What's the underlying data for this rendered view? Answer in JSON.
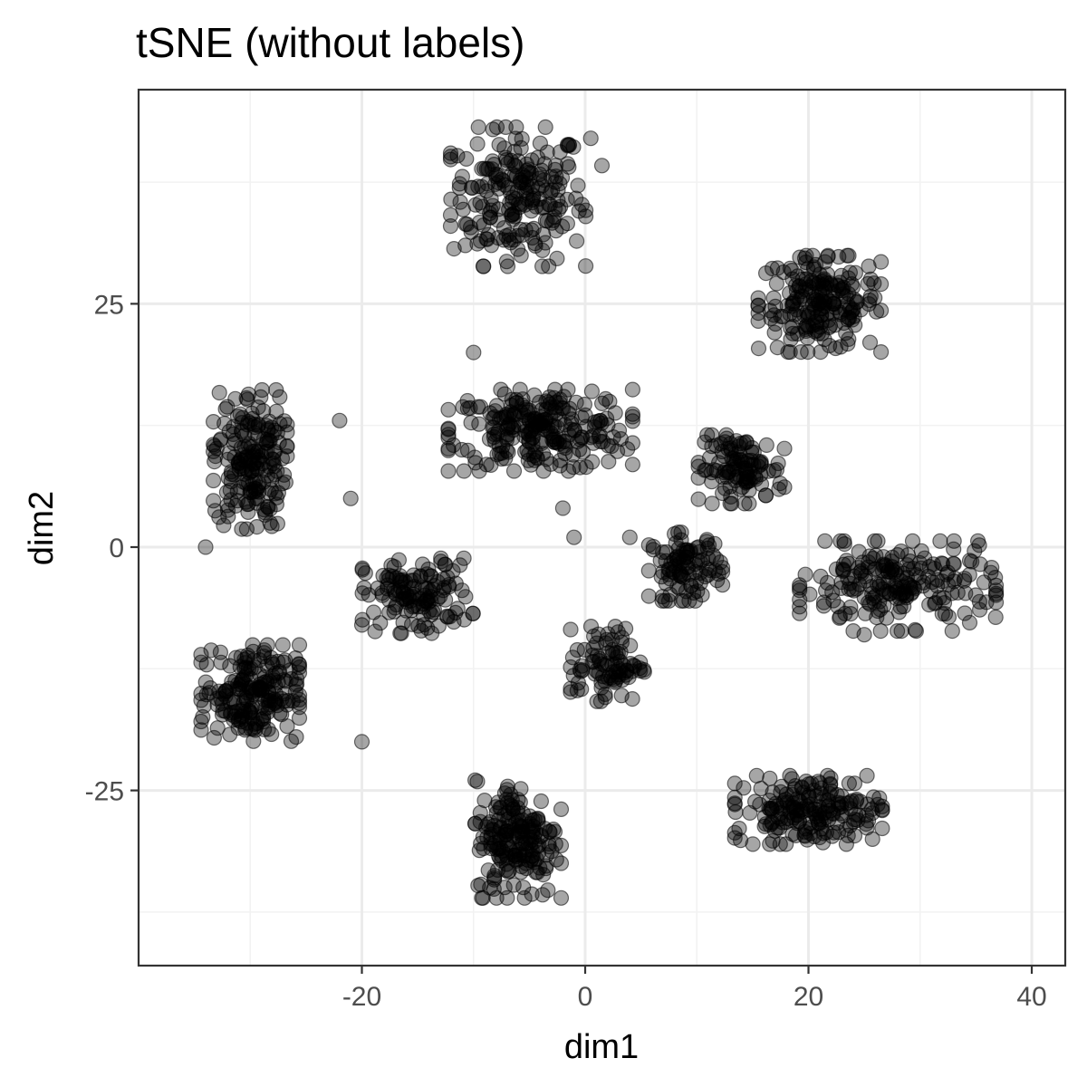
{
  "chart_data": {
    "type": "scatter",
    "title": "tSNE (without labels)",
    "xlabel": "dim1",
    "ylabel": "dim2",
    "xlim": [
      -40,
      43
    ],
    "ylim": [
      -43,
      47
    ],
    "x_ticks": [
      -20,
      0,
      20,
      40
    ],
    "y_ticks": [
      -25,
      0,
      25
    ],
    "x_tick_labels": [
      "-20",
      "0",
      "20",
      "40"
    ],
    "y_tick_labels": [
      "-25",
      "0",
      "25"
    ],
    "grid": true,
    "point_color": "#000000",
    "point_alpha": 0.35,
    "clusters": [
      {
        "center": [
          -6,
          36
        ],
        "spread": [
          5.5,
          6.5
        ],
        "n": 210
      },
      {
        "center": [
          21,
          25
        ],
        "spread": [
          5.0,
          4.5
        ],
        "n": 200
      },
      {
        "center": [
          -4,
          12
        ],
        "spread": [
          7.5,
          3.8
        ],
        "n": 240
      },
      {
        "center": [
          -30,
          9
        ],
        "spread": [
          3.0,
          6.5
        ],
        "n": 190
      },
      {
        "center": [
          -15,
          -5
        ],
        "spread": [
          4.5,
          3.5
        ],
        "n": 130
      },
      {
        "center": [
          14,
          8
        ],
        "spread": [
          3.5,
          3.2
        ],
        "n": 110
      },
      {
        "center": [
          9,
          -2
        ],
        "spread": [
          3.0,
          3.2
        ],
        "n": 100
      },
      {
        "center": [
          28,
          -4
        ],
        "spread": [
          8.0,
          4.2
        ],
        "n": 210
      },
      {
        "center": [
          -30,
          -15
        ],
        "spread": [
          4.0,
          4.5
        ],
        "n": 200
      },
      {
        "center": [
          2,
          -12
        ],
        "spread": [
          3.0,
          3.5
        ],
        "n": 90
      },
      {
        "center": [
          -6,
          -30
        ],
        "spread": [
          3.5,
          5.5
        ],
        "n": 190
      },
      {
        "center": [
          20,
          -27
        ],
        "spread": [
          6.0,
          3.2
        ],
        "n": 190
      }
    ],
    "outliers": [
      [
        0.5,
        42
      ],
      [
        1.5,
        39.2
      ],
      [
        -21,
        5
      ],
      [
        -34,
        0
      ],
      [
        -2,
        4
      ],
      [
        -10,
        20
      ],
      [
        -22,
        13
      ],
      [
        -1,
        1
      ],
      [
        -20,
        -20
      ],
      [
        -20,
        -8
      ],
      [
        4,
        1
      ],
      [
        25,
        -9
      ]
    ]
  }
}
